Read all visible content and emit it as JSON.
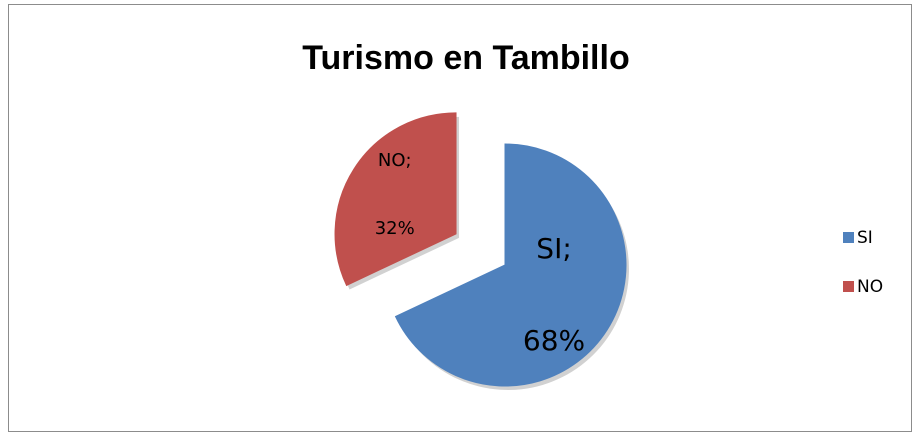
{
  "chart_data": {
    "type": "pie",
    "title": "Turismo en Tambillo",
    "categories": [
      "SI",
      "NO"
    ],
    "values": [
      68,
      32
    ],
    "value_labels": [
      "68%",
      "32%"
    ],
    "label_prefixes": [
      "SI;",
      "NO;"
    ],
    "colors": [
      "#4f81bd",
      "#c0504d"
    ],
    "legend": "right"
  }
}
